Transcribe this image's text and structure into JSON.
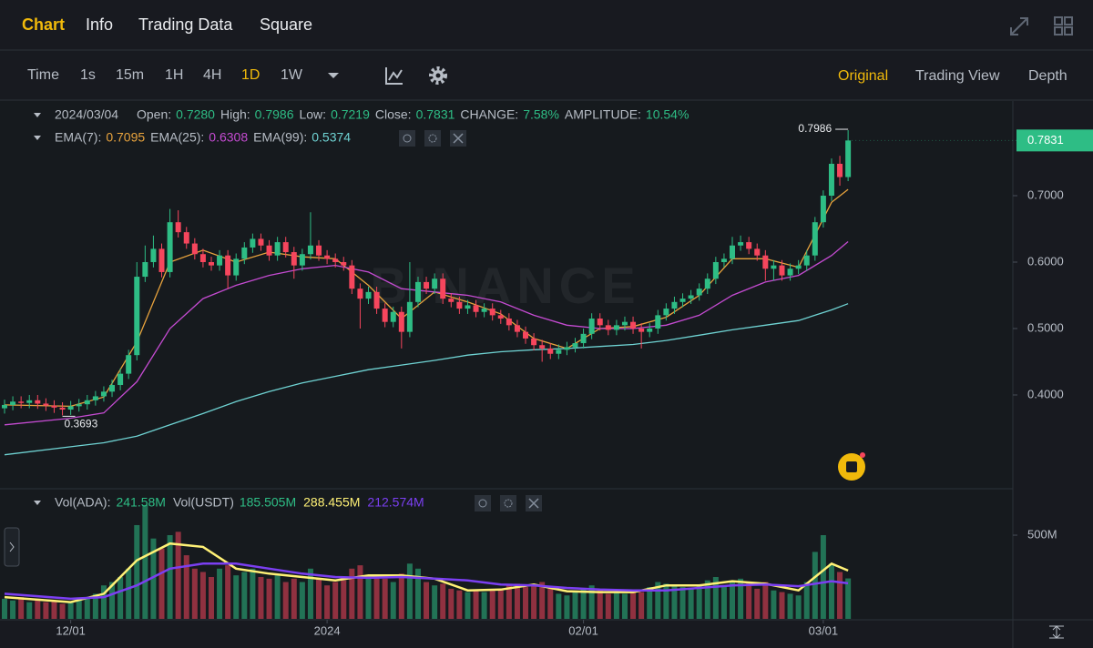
{
  "nav": {
    "tabs": [
      "Chart",
      "Info",
      "Trading Data",
      "Square"
    ]
  },
  "toolbar": {
    "intervals": [
      "Time",
      "1s",
      "15m",
      "1H",
      "4H",
      "1D",
      "1W"
    ],
    "views": [
      "Original",
      "Trading View",
      "Depth"
    ]
  },
  "legend": {
    "date": "2024/03/04",
    "items": [
      {
        "label": "Open:",
        "value": "0.7280"
      },
      {
        "label": "High:",
        "value": "0.7986"
      },
      {
        "label": "Low:",
        "value": "0.7219"
      },
      {
        "label": "Close:",
        "value": "0.7831"
      },
      {
        "label": "CHANGE:",
        "value": "7.58%"
      },
      {
        "label": "AMPLITUDE:",
        "value": "10.54%"
      }
    ]
  },
  "ema_legend": [
    {
      "label": "EMA(7):",
      "value": "0.7095"
    },
    {
      "label": "EMA(25):",
      "value": "0.6308"
    },
    {
      "label": "EMA(99):",
      "value": "0.5374"
    }
  ],
  "vol_legend": {
    "items": [
      {
        "label": "Vol(ADA):",
        "value": "241.58M"
      },
      {
        "label": "Vol(USDT)",
        "value": "185.505M"
      }
    ],
    "ma_values": [
      "288.455M",
      "212.574M"
    ]
  },
  "chart_data": {
    "type": "candlestick",
    "watermark": "BINANCE",
    "up_color": "#2ebd85",
    "down_color": "#f6465d",
    "open": [
      0.38,
      0.385,
      0.39,
      0.388,
      0.392,
      0.387,
      0.384,
      0.381,
      0.378,
      0.383,
      0.386,
      0.392,
      0.398,
      0.405,
      0.415,
      0.432,
      0.46,
      0.578,
      0.6,
      0.62,
      0.585,
      0.66,
      0.645,
      0.628,
      0.612,
      0.6,
      0.595,
      0.61,
      0.58,
      0.605,
      0.622,
      0.635,
      0.625,
      0.61,
      0.63,
      0.615,
      0.595,
      0.612,
      0.625,
      0.61,
      0.605,
      0.6,
      0.595,
      0.56,
      0.545,
      0.555,
      0.53,
      0.51,
      0.525,
      0.495,
      0.54,
      0.57,
      0.56,
      0.575,
      0.545,
      0.54,
      0.53,
      0.535,
      0.525,
      0.53,
      0.52,
      0.515,
      0.505,
      0.495,
      0.485,
      0.475,
      0.47,
      0.462,
      0.468,
      0.472,
      0.478,
      0.492,
      0.515,
      0.505,
      0.498,
      0.505,
      0.51,
      0.5,
      0.495,
      0.5,
      0.52,
      0.53,
      0.54,
      0.545,
      0.55,
      0.56,
      0.575,
      0.6,
      0.605,
      0.625,
      0.63,
      0.62,
      0.61,
      0.59,
      0.595,
      0.58,
      0.59,
      0.595,
      0.61,
      0.66,
      0.7,
      0.748,
      0.728
    ],
    "high": [
      0.393,
      0.398,
      0.398,
      0.4,
      0.4,
      0.395,
      0.392,
      0.389,
      0.391,
      0.394,
      0.4,
      0.406,
      0.413,
      0.423,
      0.44,
      0.468,
      0.6,
      0.625,
      0.64,
      0.628,
      0.68,
      0.678,
      0.653,
      0.636,
      0.62,
      0.608,
      0.618,
      0.618,
      0.613,
      0.63,
      0.643,
      0.643,
      0.633,
      0.638,
      0.638,
      0.623,
      0.62,
      0.675,
      0.633,
      0.618,
      0.613,
      0.608,
      0.603,
      0.568,
      0.563,
      0.563,
      0.538,
      0.533,
      0.533,
      0.6,
      0.578,
      0.578,
      0.583,
      0.583,
      0.553,
      0.548,
      0.543,
      0.543,
      0.538,
      0.538,
      0.528,
      0.523,
      0.513,
      0.503,
      0.493,
      0.483,
      0.478,
      0.476,
      0.48,
      0.486,
      0.5,
      0.523,
      0.523,
      0.513,
      0.513,
      0.518,
      0.518,
      0.508,
      0.508,
      0.528,
      0.538,
      0.548,
      0.553,
      0.558,
      0.568,
      0.583,
      0.608,
      0.613,
      0.638,
      0.64,
      0.638,
      0.628,
      0.618,
      0.603,
      0.603,
      0.598,
      0.603,
      0.618,
      0.668,
      0.708,
      0.756,
      0.76,
      0.7986
    ],
    "low": [
      0.372,
      0.377,
      0.38,
      0.38,
      0.379,
      0.376,
      0.373,
      0.3693,
      0.37,
      0.375,
      0.378,
      0.384,
      0.39,
      0.397,
      0.407,
      0.424,
      0.452,
      0.57,
      0.592,
      0.577,
      0.577,
      0.637,
      0.62,
      0.604,
      0.592,
      0.587,
      0.587,
      0.56,
      0.572,
      0.597,
      0.614,
      0.617,
      0.602,
      0.602,
      0.607,
      0.575,
      0.587,
      0.604,
      0.602,
      0.597,
      0.592,
      0.587,
      0.552,
      0.5,
      0.537,
      0.522,
      0.502,
      0.502,
      0.47,
      0.487,
      0.532,
      0.552,
      0.552,
      0.537,
      0.532,
      0.522,
      0.522,
      0.517,
      0.517,
      0.512,
      0.507,
      0.497,
      0.487,
      0.477,
      0.467,
      0.45,
      0.454,
      0.454,
      0.46,
      0.464,
      0.47,
      0.484,
      0.497,
      0.49,
      0.49,
      0.497,
      0.492,
      0.47,
      0.487,
      0.492,
      0.512,
      0.522,
      0.532,
      0.537,
      0.542,
      0.552,
      0.567,
      0.592,
      0.597,
      0.617,
      0.612,
      0.602,
      0.572,
      0.572,
      0.572,
      0.572,
      0.582,
      0.587,
      0.602,
      0.652,
      0.692,
      0.715,
      0.7219
    ],
    "close": [
      0.385,
      0.39,
      0.388,
      0.392,
      0.387,
      0.384,
      0.381,
      0.378,
      0.383,
      0.386,
      0.392,
      0.398,
      0.405,
      0.415,
      0.432,
      0.46,
      0.578,
      0.6,
      0.62,
      0.585,
      0.66,
      0.645,
      0.628,
      0.612,
      0.6,
      0.595,
      0.61,
      0.58,
      0.605,
      0.622,
      0.635,
      0.625,
      0.61,
      0.63,
      0.615,
      0.595,
      0.612,
      0.625,
      0.61,
      0.605,
      0.6,
      0.595,
      0.56,
      0.545,
      0.555,
      0.53,
      0.51,
      0.525,
      0.495,
      0.54,
      0.57,
      0.56,
      0.575,
      0.545,
      0.54,
      0.53,
      0.535,
      0.525,
      0.53,
      0.52,
      0.515,
      0.505,
      0.495,
      0.485,
      0.475,
      0.47,
      0.462,
      0.468,
      0.472,
      0.478,
      0.492,
      0.515,
      0.505,
      0.498,
      0.505,
      0.51,
      0.5,
      0.495,
      0.5,
      0.52,
      0.53,
      0.54,
      0.545,
      0.55,
      0.56,
      0.575,
      0.6,
      0.605,
      0.625,
      0.63,
      0.62,
      0.61,
      0.59,
      0.595,
      0.58,
      0.59,
      0.595,
      0.61,
      0.66,
      0.7,
      0.748,
      0.728,
      0.7831
    ],
    "max_label": "0.7986",
    "min_label": "0.3693",
    "last_price": "0.7831",
    "xlim": [
      -0.55,
      121.7
    ],
    "xticks": [
      {
        "value": 8,
        "label": "12/01"
      },
      {
        "value": 39,
        "label": "2024"
      },
      {
        "value": 70,
        "label": "02/01"
      },
      {
        "value": 99,
        "label": "03/01"
      }
    ],
    "ylim": [
      0.2616,
      0.837
    ],
    "yticks": [
      {
        "value": 0.4,
        "label": "0.4000"
      },
      {
        "value": 0.5,
        "label": "0.5000"
      },
      {
        "value": 0.6,
        "label": "0.6000"
      },
      {
        "value": 0.7,
        "label": "0.7000"
      }
    ],
    "lines": [
      {
        "color": "#e8a33d",
        "x": [
          0,
          8,
          12,
          16,
          20,
          24,
          28,
          32,
          36,
          40,
          44,
          48,
          52,
          56,
          60,
          64,
          68,
          72,
          76,
          80,
          84,
          88,
          92,
          96,
          100,
          102
        ],
        "values": [
          0.385,
          0.383,
          0.397,
          0.48,
          0.6,
          0.618,
          0.6,
          0.615,
          0.608,
          0.605,
          0.565,
          0.515,
          0.555,
          0.54,
          0.522,
          0.485,
          0.47,
          0.5,
          0.503,
          0.517,
          0.55,
          0.605,
          0.605,
          0.592,
          0.69,
          0.7095
        ]
      },
      {
        "color": "#c44bd1",
        "x": [
          0,
          8,
          12,
          16,
          20,
          24,
          28,
          32,
          36,
          40,
          44,
          48,
          52,
          56,
          60,
          64,
          68,
          72,
          76,
          80,
          84,
          88,
          92,
          96,
          100,
          102
        ],
        "values": [
          0.355,
          0.365,
          0.373,
          0.42,
          0.5,
          0.545,
          0.565,
          0.58,
          0.59,
          0.595,
          0.585,
          0.56,
          0.555,
          0.55,
          0.54,
          0.52,
          0.505,
          0.5,
          0.5,
          0.505,
          0.52,
          0.55,
          0.57,
          0.58,
          0.61,
          0.6308
        ]
      },
      {
        "color": "#6fd3d3",
        "x": [
          0,
          8,
          12,
          16,
          20,
          24,
          28,
          32,
          36,
          40,
          44,
          48,
          52,
          56,
          60,
          64,
          68,
          72,
          76,
          80,
          84,
          88,
          92,
          96,
          100,
          102
        ],
        "values": [
          0.31,
          0.322,
          0.328,
          0.338,
          0.355,
          0.372,
          0.39,
          0.405,
          0.418,
          0.428,
          0.438,
          0.445,
          0.452,
          0.46,
          0.465,
          0.468,
          0.47,
          0.473,
          0.476,
          0.482,
          0.49,
          0.498,
          0.505,
          0.512,
          0.528,
          0.5374
        ]
      }
    ],
    "volume": {
      "values": [
        120,
        110,
        130,
        100,
        120,
        100,
        110,
        90,
        100,
        110,
        130,
        150,
        200,
        220,
        250,
        300,
        560,
        680,
        480,
        420,
        500,
        520,
        380,
        300,
        280,
        250,
        300,
        320,
        260,
        280,
        300,
        250,
        240,
        260,
        220,
        240,
        220,
        300,
        240,
        200,
        220,
        230,
        300,
        320,
        260,
        250,
        240,
        220,
        270,
        330,
        300,
        220,
        200,
        210,
        180,
        170,
        160,
        170,
        160,
        170,
        180,
        200,
        210,
        190,
        200,
        220,
        180,
        150,
        140,
        160,
        180,
        200,
        170,
        150,
        160,
        150,
        170,
        160,
        190,
        220,
        210,
        200,
        190,
        180,
        200,
        230,
        250,
        200,
        220,
        240,
        220,
        180,
        220,
        170,
        160,
        150,
        140,
        220,
        400,
        500,
        330,
        280,
        241.58
      ],
      "ylim": [
        0,
        761
      ],
      "yticks": [
        {
          "value": 500,
          "label": "500M"
        }
      ],
      "lines": [
        {
          "color": "#fff176",
          "x": [
            0,
            8,
            12,
            16,
            20,
            24,
            28,
            32,
            36,
            40,
            44,
            48,
            52,
            56,
            60,
            64,
            68,
            72,
            76,
            80,
            84,
            88,
            92,
            96,
            100,
            102
          ],
          "values": [
            130,
            100,
            150,
            350,
            450,
            430,
            300,
            270,
            250,
            230,
            260,
            260,
            240,
            170,
            175,
            205,
            165,
            160,
            160,
            200,
            200,
            225,
            210,
            170,
            330,
            288.455
          ]
        },
        {
          "color": "#7b3ff2",
          "x": [
            0,
            8,
            12,
            16,
            20,
            24,
            28,
            32,
            36,
            40,
            44,
            48,
            52,
            56,
            60,
            64,
            68,
            72,
            76,
            80,
            84,
            88,
            92,
            96,
            100,
            102
          ],
          "values": [
            150,
            120,
            130,
            200,
            300,
            330,
            330,
            300,
            270,
            250,
            245,
            250,
            240,
            230,
            205,
            200,
            185,
            175,
            170,
            170,
            185,
            200,
            205,
            195,
            225,
            212.574
          ]
        }
      ]
    }
  }
}
